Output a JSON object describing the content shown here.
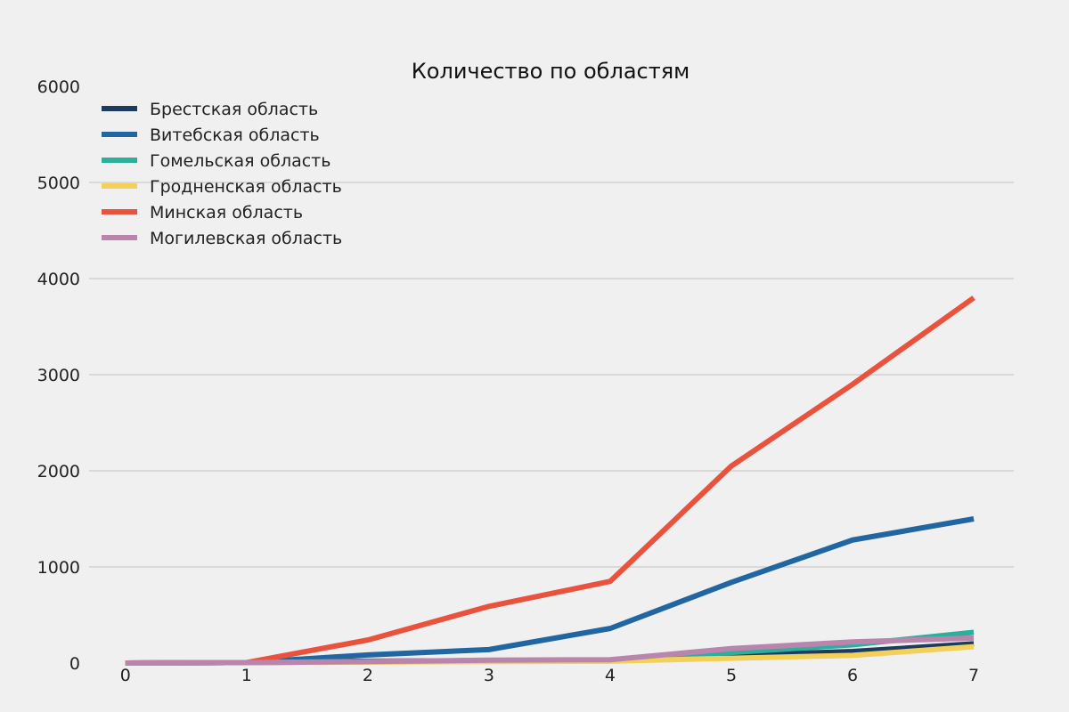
{
  "chart_data": {
    "type": "line",
    "title": "Количество по областям",
    "xlabel": "",
    "ylabel": "",
    "x": [
      0,
      1,
      2,
      3,
      4,
      5,
      6,
      7
    ],
    "xlim": [
      -0.3,
      7.33
    ],
    "ylim": [
      0,
      6000
    ],
    "x_ticks": [
      0,
      1,
      2,
      3,
      4,
      5,
      6,
      7
    ],
    "y_ticks": [
      0,
      1000,
      2000,
      3000,
      4000,
      5000,
      6000
    ],
    "grid": "horizontal",
    "legend_position": "upper-left",
    "series": [
      {
        "name": "Брестская область",
        "color": "#1b3b5f",
        "values": [
          0,
          5,
          20,
          25,
          30,
          80,
          120,
          200
        ]
      },
      {
        "name": "Витебская область",
        "color": "#2166a0",
        "values": [
          0,
          5,
          85,
          140,
          360,
          840,
          1280,
          1500
        ]
      },
      {
        "name": "Гомельская область",
        "color": "#2bb09b",
        "values": [
          0,
          5,
          15,
          25,
          30,
          110,
          190,
          320
        ]
      },
      {
        "name": "Гродненская область",
        "color": "#f2d05a",
        "values": [
          0,
          5,
          10,
          15,
          20,
          50,
          80,
          170
        ]
      },
      {
        "name": "Минская область",
        "color": "#e9533e",
        "values": [
          0,
          5,
          240,
          590,
          850,
          2050,
          2900,
          3800
        ]
      },
      {
        "name": "Могилевская область",
        "color": "#b985ad",
        "values": [
          0,
          5,
          15,
          30,
          35,
          150,
          220,
          260
        ]
      }
    ]
  }
}
